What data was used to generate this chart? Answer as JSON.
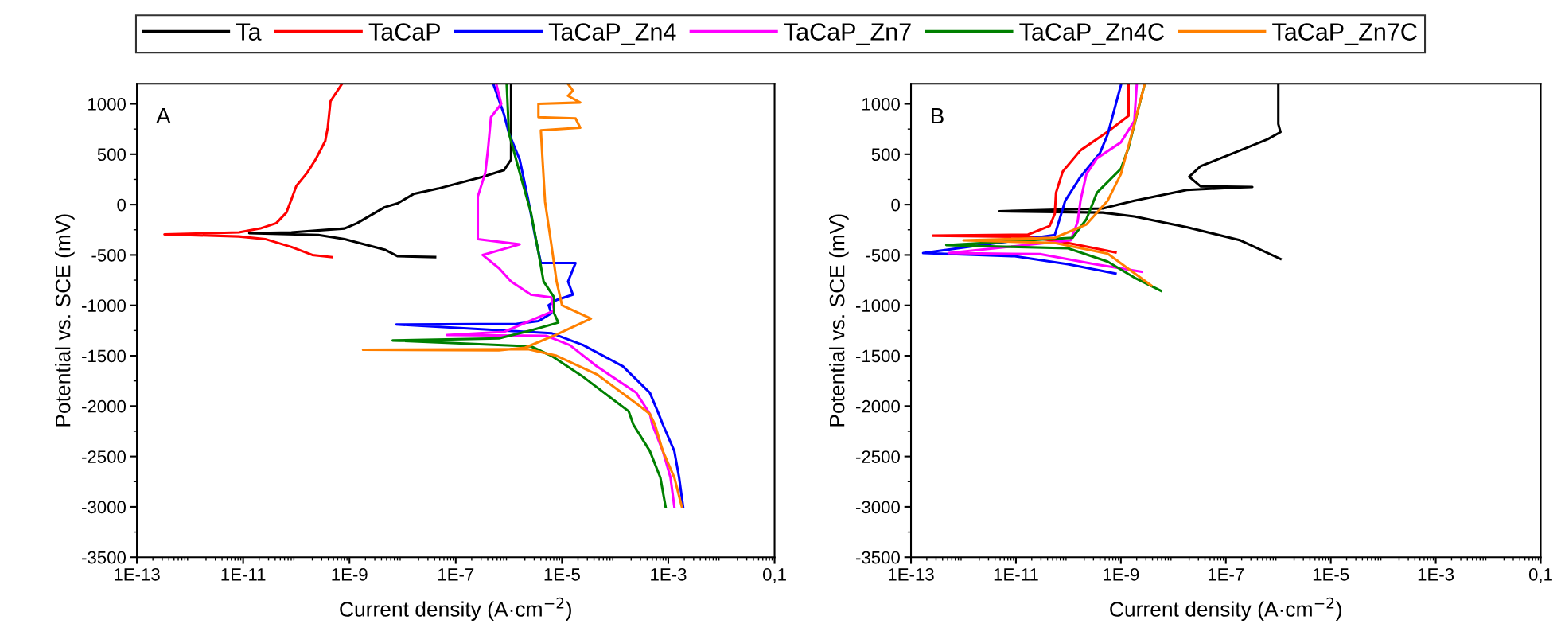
{
  "chart_data": [
    {
      "type": "line",
      "xlabel": "Current density (A·cm$^{−2}$)",
      "ylabel": "Potential vs. SCE (mV)",
      "annotations": [
        "A"
      ],
      "log": "x",
      "legend": "top",
      "grid": false,
      "marker": "none",
      "line_style": "solid",
      "xlim": [
        1e-13,
        0.1
      ],
      "xticks": [
        {
          "value": 1e-13,
          "label": "1E-13"
        },
        {
          "value": 1e-11,
          "label": "1E-11"
        },
        {
          "value": 1e-09,
          "label": "1E-9"
        },
        {
          "value": 1e-07,
          "label": "1E-7"
        },
        {
          "value": 1e-05,
          "label": "1E-5"
        },
        {
          "value": 0.001,
          "label": "1E-3"
        },
        {
          "value": 0.1,
          "label": "0,1"
        }
      ],
      "ylim": [
        -3500,
        1200
      ],
      "yticks": [
        -3500,
        -3000,
        -2500,
        -2000,
        -1500,
        -1000,
        -500,
        0,
        500,
        1000
      ],
      "series": [
        {
          "name": "Ta",
          "color": "#000000",
          "x": [
            1.1e-06,
            1.1e-06,
            8.1e-07,
            3.2e-07,
            4.6e-08,
            1.6e-08,
            8.1e-09,
            4.6e-09,
            1.4e-09,
            8.1e-10,
            8.1e-11,
            1.3e-11,
            2.6e-10,
            8.1e-10,
            4.6e-09,
            8.1e-09,
            4.1e-08
          ],
          "values": [
            1197,
            447,
            342,
            276,
            158,
            105,
            13,
            -26,
            -184,
            -237,
            -276,
            -284,
            -302,
            -342,
            -447,
            -513,
            -521
          ]
        },
        {
          "name": "TaCaP",
          "color": "#ff0000",
          "x": [
            7.2e-10,
            4.4e-10,
            3.9e-10,
            3.5e-10,
            2.3e-10,
            1.6e-10,
            1e-10,
            8.1e-11,
            6.5e-11,
            4.2e-11,
            2.1e-11,
            8.3e-12,
            3.3e-13,
            8.3e-12,
            2.6e-11,
            8.1e-11,
            2e-10,
            4.6e-10
          ],
          "values": [
            1197,
            1026,
            763,
            631,
            447,
            316,
            184,
            53,
            -79,
            -184,
            -237,
            -276,
            -295,
            -316,
            -342,
            -421,
            -500,
            -521
          ]
        },
        {
          "name": "TaCaP_Zn4",
          "color": "#0000ff",
          "x": [
            5.1e-07,
            8.1e-07,
            1e-06,
            1.6e-06,
            2.3e-06,
            3.2e-06,
            4e-06,
            1.8e-05,
            1.3e-05,
            1.6e-05,
            7.9e-06,
            5.6e-06,
            6.3e-06,
            3.6e-06,
            1.4e-06,
            7.6e-09,
            6.3e-06,
            2.5e-05,
            0.00014,
            0.00045,
            0.00066,
            0.00079,
            0.0013,
            0.0016,
            0.0019
          ],
          "values": [
            1197,
            895,
            710,
            447,
            53,
            -342,
            -579,
            -579,
            -763,
            -894,
            -947,
            -999,
            -1078,
            -1157,
            -1184,
            -1190,
            -1276,
            -1394,
            -1605,
            -1868,
            -2078,
            -2183,
            -2447,
            -2710,
            -3000
          ]
        },
        {
          "name": "TaCaP_Zn7",
          "color": "#ff00ff",
          "x": [
            5.8e-07,
            7.2e-07,
            4.6e-07,
            4.1e-07,
            3.6e-07,
            2.6e-07,
            2.6e-07,
            1.6e-06,
            3.2e-07,
            6.5e-07,
            1.1e-06,
            2.6e-06,
            6.3e-06,
            7.1e-06,
            8.1e-07,
            6.8e-08,
            5e-06,
            1.4e-05,
            4.5e-05,
            0.00025,
            0.00045,
            0.0005,
            0.00079,
            0.0011,
            0.0013
          ],
          "values": [
            1197,
            1000,
            868,
            579,
            316,
            79,
            -342,
            -395,
            -500,
            -631,
            -763,
            -894,
            -921,
            -1052,
            -1263,
            -1294,
            -1302,
            -1394,
            -1605,
            -1868,
            -2078,
            -2183,
            -2447,
            -2710,
            -3000
          ]
        },
        {
          "name": "TaCaP_Zn4C",
          "color": "#008000",
          "x": [
            9.1e-07,
            1e-06,
            1.6e-06,
            2.6e-06,
            3.6e-06,
            4.5e-06,
            7.1e-06,
            7.1e-06,
            8.5e-06,
            2.6e-06,
            6.5e-07,
            6.5e-09,
            2.6e-06,
            6.3e-06,
            2.5e-05,
            0.00018,
            0.00022,
            0.00045,
            0.00071,
            0.00089
          ],
          "values": [
            1197,
            710,
            316,
            -79,
            -474,
            -763,
            -921,
            -1078,
            -1171,
            -1249,
            -1328,
            -1349,
            -1407,
            -1500,
            -1710,
            -2052,
            -2183,
            -2447,
            -2710,
            -3000
          ]
        },
        {
          "name": "TaCaP_Zn7C",
          "color": "#ff8000",
          "x": [
            1.3e-05,
            1.6e-05,
            1.3e-05,
            2.2e-05,
            3.6e-06,
            3.6e-06,
            1.8e-05,
            2.2e-05,
            4e-06,
            4.3e-06,
            4.8e-06,
            6.3e-06,
            7.9e-06,
            1e-05,
            3.5e-05,
            7.9e-06,
            2e-06,
            6.5e-07,
            1.8e-09,
            2.3e-06,
            7.9e-06,
            4.5e-05,
            0.00025,
            0.00045,
            0.00056,
            0.00079,
            0.0013,
            0.0018
          ],
          "values": [
            1197,
            1132,
            1079,
            1013,
            1000,
            868,
            856,
            763,
            737,
            447,
            27,
            -395,
            -763,
            -999,
            -1131,
            -1289,
            -1421,
            -1447,
            -1441,
            -1434,
            -1500,
            -1684,
            -1973,
            -2078,
            -2183,
            -2447,
            -2710,
            -3000
          ]
        }
      ]
    },
    {
      "type": "line",
      "xlabel": "Current density (A·cm$^{−2}$)",
      "ylabel": "Potential vs. SCE (mV)",
      "annotations": [
        "B"
      ],
      "log": "x",
      "legend": "top",
      "grid": false,
      "marker": "none",
      "line_style": "solid",
      "xlim": [
        1e-13,
        0.1
      ],
      "xticks": [
        {
          "value": 1e-13,
          "label": "1E-13"
        },
        {
          "value": 1e-11,
          "label": "1E-11"
        },
        {
          "value": 1e-09,
          "label": "1E-9"
        },
        {
          "value": 1e-07,
          "label": "1E-7"
        },
        {
          "value": 1e-05,
          "label": "1E-5"
        },
        {
          "value": 0.001,
          "label": "1E-3"
        },
        {
          "value": 0.1,
          "label": "0,1"
        }
      ],
      "ylim": [
        -3500,
        1200
      ],
      "yticks": [
        -3500,
        -3000,
        -2500,
        -2000,
        -1500,
        -1000,
        -500,
        0,
        500,
        1000
      ],
      "series": [
        {
          "name": "Ta",
          "color": "#000000",
          "x": [
            1.1e-06,
            1.9e-07,
            1.8e-08,
            1.8e-09,
            4.5e-10,
            4.8e-12,
            4.5e-10,
            1.8e-09,
            1.8e-08,
            1.9e-07,
            3.2e-07,
            3.3e-08,
            2e-08,
            3.3e-08,
            1.9e-07,
            6.3e-07,
            1.1e-06,
            1e-06,
            1e-06
          ],
          "values": [
            -540,
            -355,
            -224,
            -118,
            -79,
            -66,
            -39,
            39,
            145,
            171,
            175,
            181,
            276,
            381,
            539,
            650,
            720,
            800,
            1200
          ]
        },
        {
          "name": "TaCaP",
          "color": "#ff0000",
          "x": [
            1.4e-09,
            1.4e-09,
            1.4e-09,
            5.6e-10,
            1.7e-10,
            7.8e-11,
            5.8e-11,
            5.5e-11,
            4.4e-11,
            1.7e-11,
            2.6e-13,
            1.7e-11,
            9.8e-11,
            7.9e-10
          ],
          "values": [
            1184,
            1013,
            881,
            724,
            539,
            329,
            118,
            -92,
            -211,
            -297,
            -308,
            -320,
            -381,
            -474
          ]
        },
        {
          "name": "TaCaP_Zn4",
          "color": "#0000ff",
          "x": [
            1e-09,
            5.6e-10,
            4e-10,
            1.7e-10,
            8.7e-11,
            5.5e-11,
            1.7e-13,
            9.5e-12,
            9.8e-11,
            7.9e-10
          ],
          "values": [
            1184,
            697,
            513,
            276,
            39,
            -302,
            -481,
            -513,
            -592,
            -684
          ]
        },
        {
          "name": "TaCaP_Zn7",
          "color": "#ff00ff",
          "x": [
            2e-09,
            1.8e-09,
            1e-09,
            3.5e-10,
            2.2e-10,
            1.7e-10,
            1.5e-10,
            1.1e-10,
            5.2e-13,
            3e-11,
            3.2e-10,
            2.5e-09
          ],
          "values": [
            1184,
            829,
            618,
            460,
            302,
            39,
            -171,
            -355,
            -481,
            -492,
            -592,
            -666
          ]
        },
        {
          "name": "TaCaP_Zn4C",
          "color": "#008000",
          "x": [
            2.8e-09,
            1.4e-09,
            1e-09,
            3.5e-10,
            2.2e-10,
            1.2e-10,
            4.7e-13,
            9.8e-11,
            5.6e-10,
            1.8e-09,
            5.8e-09
          ],
          "values": [
            1184,
            566,
            355,
            118,
            -145,
            -329,
            -402,
            -434,
            -566,
            -724,
            -855
          ]
        },
        {
          "name": "TaCaP_Zn7C",
          "color": "#ff8000",
          "x": [
            2.8e-09,
            1.6e-09,
            1e-09,
            5.6e-10,
            2.2e-10,
            5.5e-11,
            1e-12,
            5.5e-11,
            5.6e-10,
            3.8e-09
          ],
          "values": [
            1184,
            697,
            302,
            39,
            -197,
            -329,
            -355,
            -381,
            -487,
            -803
          ]
        }
      ]
    }
  ]
}
